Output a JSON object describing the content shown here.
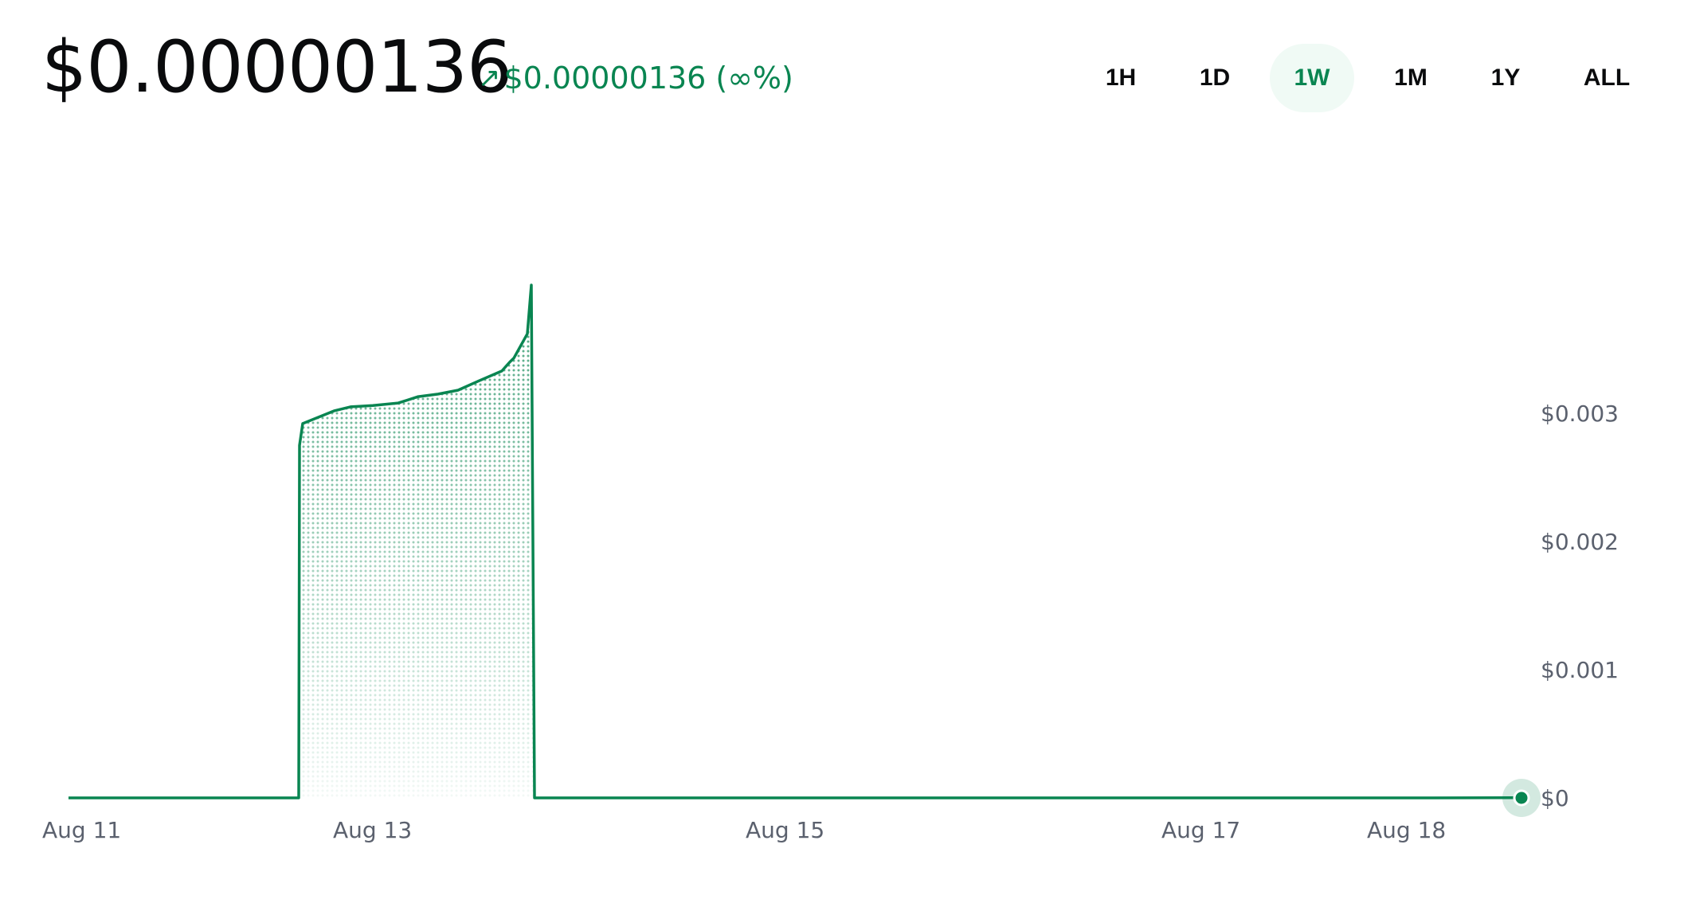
{
  "header": {
    "price": "$0.00000136",
    "change_arrow": "↗",
    "change_text": "$0.00000136 (∞%)"
  },
  "tabs": [
    {
      "label": "1H",
      "active": false
    },
    {
      "label": "1D",
      "active": false
    },
    {
      "label": "1W",
      "active": true
    },
    {
      "label": "1M",
      "active": false
    },
    {
      "label": "1Y",
      "active": false
    },
    {
      "label": "ALL",
      "active": false
    }
  ],
  "colors": {
    "accent": "#098551",
    "active_tab_bg": "#f0faf5",
    "axis_text": "#5b616e",
    "text": "#0a0b0d"
  },
  "chart_data": {
    "type": "area",
    "xlabel": "",
    "ylabel": "",
    "grid": false,
    "xlim": [
      "Aug 11",
      "Aug 18"
    ],
    "ylim": [
      0,
      0.004
    ],
    "x_ticks": [
      "Aug 11",
      "Aug 13",
      "Aug 15",
      "Aug 17",
      "Aug 18"
    ],
    "y_ticks": [
      "$0.003",
      "$0.002",
      "$0.001",
      "$0"
    ],
    "series": [
      {
        "x": [
          "Aug 11",
          "Aug 12",
          "Aug 12",
          "Aug 12",
          "Aug 12",
          "Aug 13",
          "Aug 13",
          "Aug 13",
          "Aug 13",
          "Aug 13",
          "Aug 13",
          "Aug 13",
          "Aug 13",
          "Aug 14",
          "Aug 14",
          "Aug 14",
          "Aug 14",
          "Aug 14",
          "Aug 14",
          "Aug 15",
          "Aug 16",
          "Aug 17",
          "Aug 18",
          "Aug 18"
        ],
        "values": [
          0,
          0,
          0,
          0.00275,
          0.00292,
          0.00302,
          0.00305,
          0.00306,
          0.00308,
          0.00313,
          0.00315,
          0.00318,
          0.00325,
          0.00333,
          0.0034,
          0.00343,
          0.00362,
          0.004,
          0,
          0,
          0,
          0,
          0,
          1.36e-06
        ]
      }
    ],
    "current_point": {
      "x": "Aug 18",
      "value": 1.36e-06
    }
  }
}
